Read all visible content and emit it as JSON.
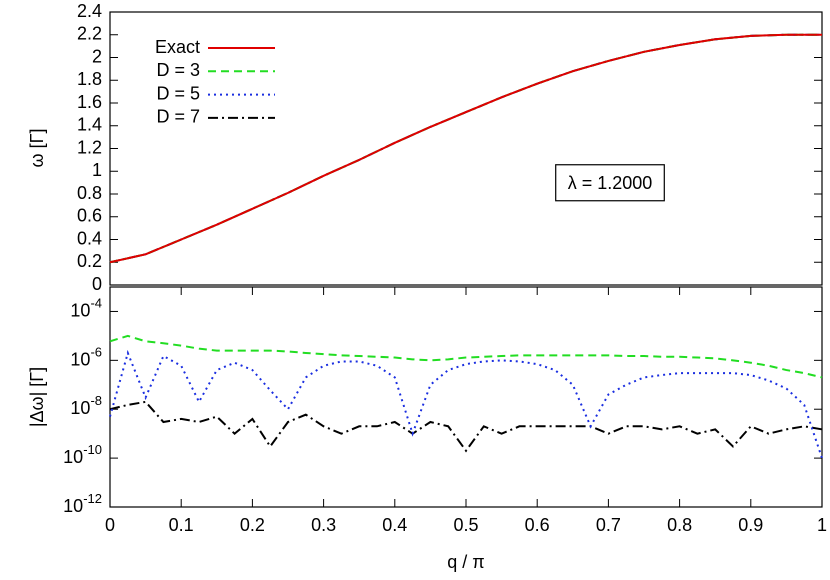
{
  "chart_data": [
    {
      "type": "line",
      "ylabel": "ω  [Γ]",
      "annotation": "λ = 1.2000",
      "x": [
        0,
        0.05,
        0.1,
        0.15,
        0.2,
        0.25,
        0.3,
        0.35,
        0.4,
        0.45,
        0.5,
        0.55,
        0.6,
        0.65,
        0.7,
        0.75,
        0.8,
        0.85,
        0.9,
        0.95,
        1
      ],
      "series": [
        {
          "name": "Exact",
          "color": "#e00000",
          "dash": "solid",
          "values": [
            0.2,
            0.27,
            0.4,
            0.53,
            0.67,
            0.81,
            0.96,
            1.1,
            1.25,
            1.39,
            1.52,
            1.65,
            1.77,
            1.88,
            1.97,
            2.05,
            2.11,
            2.16,
            2.19,
            2.2,
            2.2
          ]
        },
        {
          "name": "D = 3",
          "color": "#22dd22",
          "dash": "dashed",
          "values": [
            0.2,
            0.27,
            0.4,
            0.53,
            0.67,
            0.81,
            0.96,
            1.1,
            1.25,
            1.39,
            1.52,
            1.65,
            1.77,
            1.88,
            1.97,
            2.05,
            2.11,
            2.16,
            2.19,
            2.2,
            2.2
          ]
        },
        {
          "name": "D = 5",
          "color": "#1a2ee0",
          "dash": "dotted",
          "values": [
            0.2,
            0.27,
            0.4,
            0.53,
            0.67,
            0.81,
            0.96,
            1.1,
            1.25,
            1.39,
            1.52,
            1.65,
            1.77,
            1.88,
            1.97,
            2.05,
            2.11,
            2.16,
            2.19,
            2.2,
            2.2
          ]
        },
        {
          "name": "D = 7",
          "color": "#000000",
          "dash": "dashdot",
          "values": [
            0.2,
            0.27,
            0.4,
            0.53,
            0.67,
            0.81,
            0.96,
            1.1,
            1.25,
            1.39,
            1.52,
            1.65,
            1.77,
            1.88,
            1.97,
            2.05,
            2.11,
            2.16,
            2.19,
            2.2,
            2.2
          ]
        }
      ],
      "xlim": [
        0,
        1
      ],
      "ylim": [
        0,
        2.4
      ],
      "yticks": [
        0,
        0.2,
        0.4,
        0.6,
        0.8,
        1,
        1.2,
        1.4,
        1.6,
        1.8,
        2,
        2.2,
        2.4
      ],
      "legend": "upper-left"
    },
    {
      "type": "line",
      "ylabel": "|Δω|  [Γ]",
      "xlabel": "q / π",
      "log_y": true,
      "x": [
        0,
        0.025,
        0.05,
        0.075,
        0.1,
        0.125,
        0.15,
        0.175,
        0.2,
        0.225,
        0.25,
        0.275,
        0.3,
        0.325,
        0.35,
        0.375,
        0.4,
        0.425,
        0.45,
        0.475,
        0.5,
        0.525,
        0.55,
        0.575,
        0.6,
        0.625,
        0.65,
        0.675,
        0.7,
        0.725,
        0.75,
        0.775,
        0.8,
        0.825,
        0.85,
        0.875,
        0.9,
        0.925,
        0.95,
        0.975,
        1
      ],
      "series": [
        {
          "color": "#22dd22",
          "dash": "dashed",
          "values": [
            6e-06,
            1e-05,
            6e-06,
            5e-06,
            4e-06,
            3e-06,
            2.5e-06,
            2.5e-06,
            2.5e-06,
            2.5e-06,
            2.3e-06,
            2e-06,
            1.8e-06,
            1.6e-06,
            1.5e-06,
            1.4e-06,
            1.3e-06,
            1.1e-06,
            1e-06,
            1.1e-06,
            1.3e-06,
            1.4e-06,
            1.5e-06,
            1.6e-06,
            1.6e-06,
            1.6e-06,
            1.6e-06,
            1.6e-06,
            1.6e-06,
            1.5e-06,
            1.5e-06,
            1.4e-06,
            1.4e-06,
            1.3e-06,
            1.2e-06,
            1e-06,
            8e-07,
            6e-07,
            4e-07,
            3e-07,
            2e-07
          ]
        },
        {
          "color": "#1a2ee0",
          "dash": "dotted",
          "values": [
            5e-09,
            2e-06,
            3e-08,
            1.5e-06,
            6e-07,
            2e-08,
            4e-07,
            8e-07,
            4e-07,
            6e-08,
            1e-08,
            2e-07,
            6e-07,
            9e-07,
            9e-07,
            6e-07,
            2e-07,
            1e-09,
            1e-07,
            4e-07,
            7e-07,
            9e-07,
            1e-06,
            9e-07,
            7e-07,
            4e-07,
            1e-07,
            2e-09,
            4e-08,
            1e-07,
            2e-07,
            2.5e-07,
            3e-07,
            3e-07,
            3e-07,
            3e-07,
            2.5e-07,
            1.5e-07,
            7e-08,
            1.5e-08,
            1e-10
          ]
        },
        {
          "color": "#000000",
          "dash": "dashdot",
          "values": [
            1e-08,
            1.5e-08,
            2e-08,
            3e-09,
            4e-09,
            3e-09,
            5e-09,
            1e-09,
            4e-09,
            3e-10,
            3e-09,
            6e-09,
            2e-09,
            1e-09,
            2e-09,
            2e-09,
            3e-09,
            1e-09,
            3e-09,
            2e-09,
            2e-10,
            2e-09,
            1e-09,
            2e-09,
            2e-09,
            2e-09,
            2e-09,
            2e-09,
            1e-09,
            2e-09,
            2e-09,
            1.5e-09,
            2e-09,
            1e-09,
            1.5e-09,
            3e-10,
            2e-09,
            1e-09,
            1.5e-09,
            2e-09,
            1.5e-09
          ]
        }
      ],
      "xlim": [
        0,
        1
      ],
      "xticks": [
        0,
        0.1,
        0.2,
        0.3,
        0.4,
        0.5,
        0.6,
        0.7,
        0.8,
        0.9,
        1
      ],
      "ylim": [
        1e-12,
        0.001
      ],
      "yticks": [
        {
          "value": 1e-12,
          "label": "10-12"
        },
        {
          "value": 1e-10,
          "label": "10-10"
        },
        {
          "value": 1e-08,
          "label": "10-8"
        },
        {
          "value": 1e-06,
          "label": "10-6"
        },
        {
          "value": 0.0001,
          "label": "10-4"
        }
      ]
    }
  ]
}
